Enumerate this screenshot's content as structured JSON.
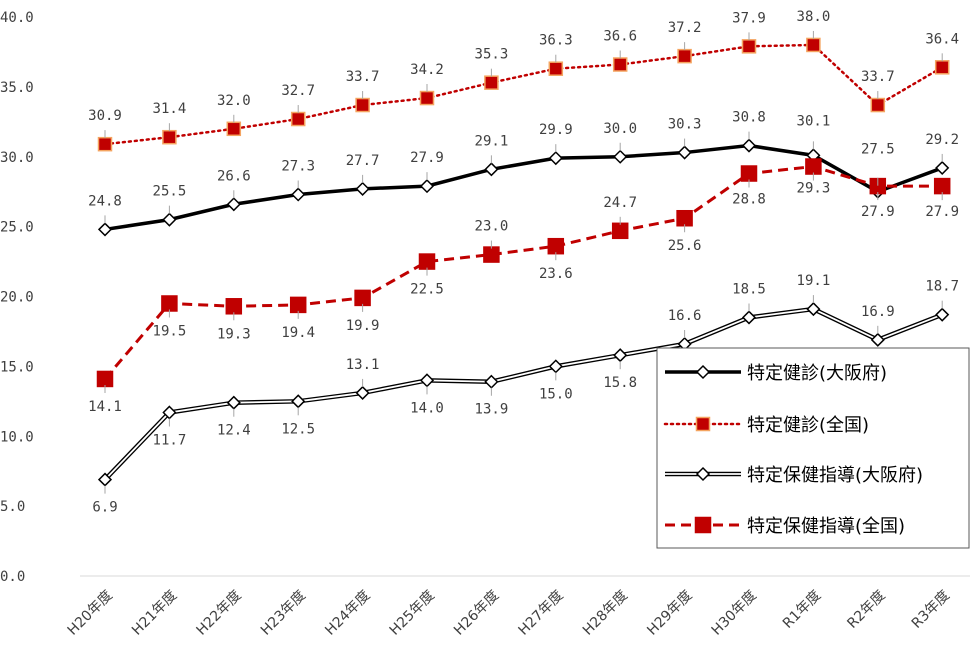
{
  "chart_data": {
    "type": "line",
    "title": "",
    "xlabel": "",
    "ylabel": "",
    "ylim": [
      0,
      40
    ],
    "yticks": [
      "0.0",
      "5.0",
      "10.0",
      "15.0",
      "20.0",
      "25.0",
      "30.0",
      "35.0",
      "40.0"
    ],
    "ytick_values": [
      0,
      5,
      10,
      15,
      20,
      25,
      30,
      35,
      40
    ],
    "categories": [
      "H20年度",
      "H21年度",
      "H22年度",
      "H23年度",
      "H24年度",
      "H25年度",
      "H26年度",
      "H27年度",
      "H28年度",
      "H29年度",
      "H30年度",
      "R1年度",
      "R2年度",
      "R3年度"
    ],
    "grid": false,
    "legend_position": "right",
    "series": [
      {
        "name": "特定健診(大阪府)",
        "values": [
          24.8,
          25.5,
          26.6,
          27.3,
          27.7,
          27.9,
          29.1,
          29.9,
          30.0,
          30.3,
          30.8,
          30.1,
          27.5,
          29.2
        ],
        "style": "solid-thick",
        "color": "#000000",
        "marker": "diamond-open"
      },
      {
        "name": "特定健診(全国)",
        "values": [
          30.9,
          31.4,
          32.0,
          32.7,
          33.7,
          34.2,
          35.3,
          36.3,
          36.6,
          37.2,
          37.9,
          38.0,
          33.7,
          36.4
        ],
        "style": "dotted",
        "color": "#c00000",
        "marker": "square-orange"
      },
      {
        "name": "特定保健指導(大阪府)",
        "values": [
          6.9,
          11.7,
          12.4,
          12.5,
          13.1,
          14.0,
          13.9,
          15.0,
          15.8,
          16.6,
          18.5,
          19.1,
          16.9,
          18.7
        ],
        "style": "double",
        "color": "#000000",
        "marker": "diamond-open"
      },
      {
        "name": "特定保健指導(全国)",
        "values": [
          14.1,
          19.5,
          19.3,
          19.4,
          19.9,
          22.5,
          23.0,
          23.6,
          24.7,
          25.6,
          28.8,
          29.3,
          27.9,
          27.9
        ],
        "style": "dashed",
        "color": "#c00000",
        "marker": "square-red"
      }
    ]
  }
}
